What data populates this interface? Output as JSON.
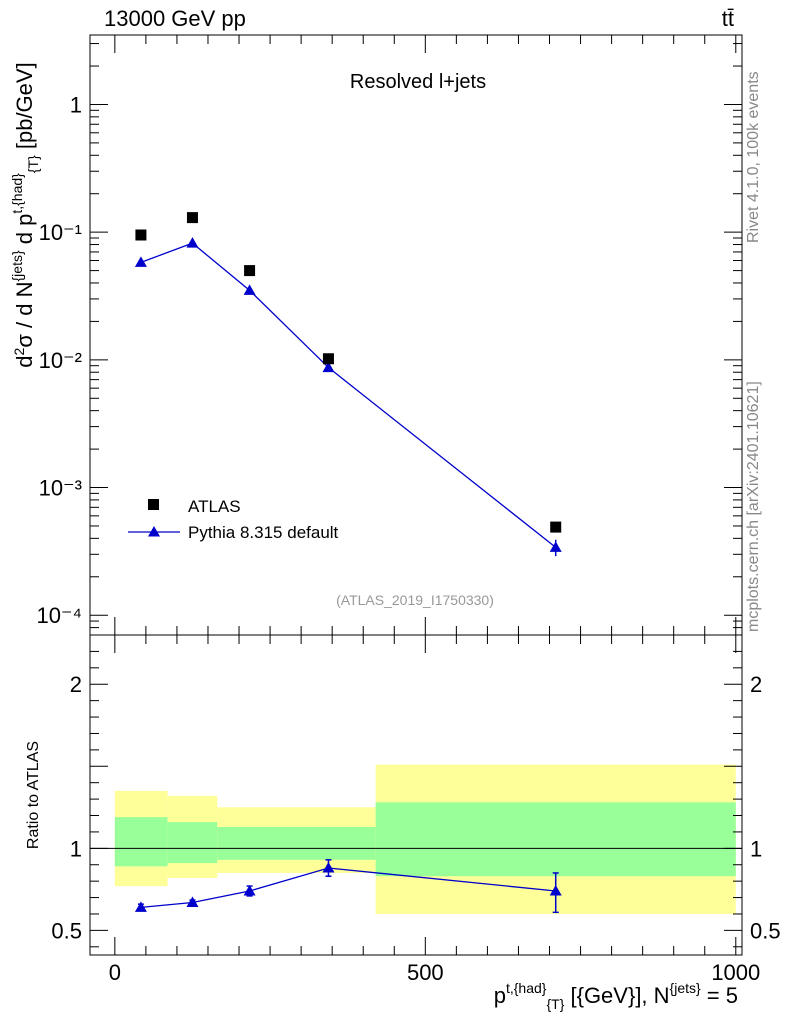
{
  "header": {
    "energy_label": "13000 GeV pp",
    "process_label": "tt̄"
  },
  "side_labels": {
    "rivet": "Rivet 4.1.0,  100k events",
    "mcplots": "mcplots.cern.ch [arXiv:2401.10621]"
  },
  "chart_data": [
    {
      "type": "scatter",
      "title": "Resolved l+jets",
      "watermark": "(ATLAS_2019_I1750330)",
      "ylabel": "d²σ / d N^{jets} d p^{t,{had}}_{T} [pb/GeV]",
      "yscale": "log",
      "ylim": [
        7e-05,
        3.5
      ],
      "xlim": [
        -40,
        1010
      ],
      "y_ticks": [
        {
          "value": 1,
          "label": "1"
        },
        {
          "value": 0.1,
          "label": "10⁻¹"
        },
        {
          "value": 0.01,
          "label": "10⁻²"
        },
        {
          "value": 0.001,
          "label": "10⁻³"
        },
        {
          "value": 0.0001,
          "label": "10⁻⁴"
        }
      ],
      "legend_position": "bottom-left",
      "series": [
        {
          "name": "ATLAS",
          "marker": "square",
          "color": "#000000",
          "x": [
            42,
            125,
            217,
            344,
            710
          ],
          "y": [
            0.095,
            0.13,
            0.05,
            0.0102,
            0.00049
          ]
        },
        {
          "name": "Pythia 8.315 default",
          "marker": "triangle",
          "color": "#0000cc",
          "x": [
            42,
            125,
            217,
            344,
            710
          ],
          "y": [
            0.058,
            0.082,
            0.035,
            0.0087,
            0.00034
          ],
          "yerr_up": [
            0.002,
            0.002,
            0.0015,
            0.0004,
            5e-05
          ],
          "yerr_down": [
            0.002,
            0.002,
            0.0015,
            0.0004,
            5e-05
          ]
        }
      ]
    },
    {
      "type": "line",
      "ylabel": "Ratio to ATLAS",
      "xlabel": "p^{t,{had}}_{T} [{GeV}], N^{jets} = 5",
      "ylim": [
        0.35,
        2.3
      ],
      "xlim": [
        -40,
        1010
      ],
      "x_ticks": [
        {
          "value": 0,
          "label": "0"
        },
        {
          "value": 500,
          "label": "500"
        },
        {
          "value": 1000,
          "label": "1000"
        }
      ],
      "y_ticks": [
        {
          "value": 0.5,
          "label": "0.5"
        },
        {
          "value": 1,
          "label": "1"
        },
        {
          "value": 2,
          "label": "2"
        }
      ],
      "bands": [
        {
          "x0": 0,
          "x1": 85,
          "yellow": [
            0.77,
            1.35
          ],
          "green": [
            0.89,
            1.19
          ]
        },
        {
          "x0": 85,
          "x1": 165,
          "yellow": [
            0.82,
            1.32
          ],
          "green": [
            0.91,
            1.16
          ]
        },
        {
          "x0": 165,
          "x1": 420,
          "yellow": [
            0.85,
            1.25
          ],
          "green": [
            0.93,
            1.13
          ]
        },
        {
          "x0": 420,
          "x1": 1000,
          "yellow": [
            0.6,
            1.51
          ],
          "green": [
            0.83,
            1.28
          ]
        }
      ],
      "series": [
        {
          "name": "Pythia 8.315 default",
          "color": "#0000cc",
          "x": [
            42,
            125,
            217,
            344,
            710
          ],
          "y": [
            0.64,
            0.67,
            0.74,
            0.88,
            0.74
          ],
          "yerr_up": [
            0.02,
            0.015,
            0.03,
            0.05,
            0.11
          ],
          "yerr_down": [
            0.02,
            0.015,
            0.03,
            0.05,
            0.13
          ]
        }
      ]
    }
  ]
}
